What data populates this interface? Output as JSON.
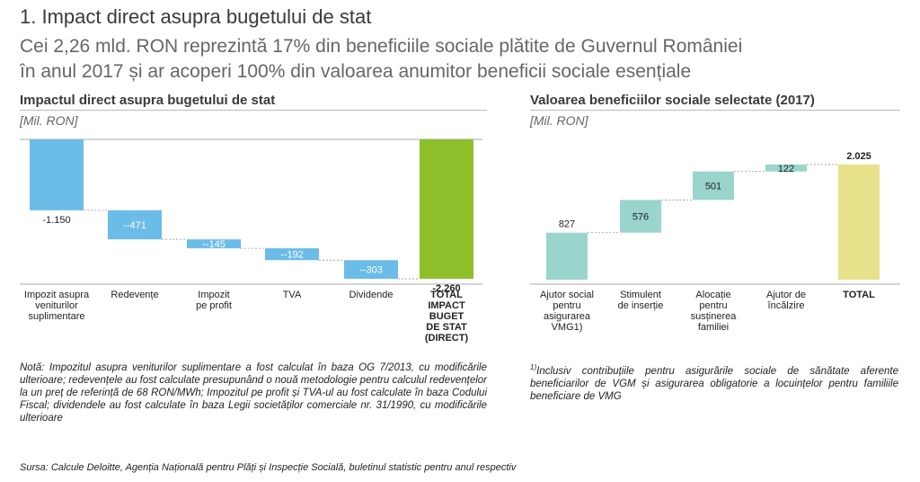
{
  "header": {
    "title": "1. Impact direct asupra bugetului de stat",
    "subtitle_line1": "Cei 2,26 mld. RON reprezintă 17% din beneficiile sociale plătite de Guvernul României",
    "subtitle_line2": "în anul 2017 și ar acoperi 100% din valoarea anumitor beneficii sociale esențiale"
  },
  "left_chart": {
    "title": "Impactul direct asupra bugetului de stat",
    "unit": "[Mil. RON]"
  },
  "right_chart": {
    "title": "Valoarea beneficiilor sociale selectate (2017)",
    "unit": "[Mil. RON]"
  },
  "colors": {
    "blue": "#6cbce8",
    "green": "#8dbf2b",
    "teal": "#99d4cd",
    "yellow": "#e6e18a"
  },
  "chart_data": [
    {
      "type": "bar",
      "subtype": "waterfall",
      "title": "Impactul direct asupra bugetului de stat",
      "ylabel": "[Mil. RON]",
      "ylim": [
        -2260,
        0
      ],
      "categories": [
        [
          "Impozit asupra",
          "veniturilor",
          "suplimentare"
        ],
        [
          "Redevențe"
        ],
        [
          "Impozit",
          "pe profit"
        ],
        [
          "TVA"
        ],
        [
          "Dividende"
        ],
        [
          "TOTAL",
          "IMPACT",
          "BUGET",
          "DE STAT",
          "(DIRECT)"
        ]
      ],
      "values": [
        -1150,
        -471,
        -145,
        -192,
        -303,
        -2260
      ],
      "labels": [
        "-1.150",
        "--471",
        "--145",
        "--192",
        "--303",
        "-2.260"
      ],
      "is_total": [
        false,
        false,
        false,
        false,
        false,
        true
      ]
    },
    {
      "type": "bar",
      "subtype": "waterfall",
      "title": "Valoarea beneficiilor sociale selectate (2017)",
      "ylabel": "[Mil. RON]",
      "ylim": [
        0,
        2025
      ],
      "categories": [
        [
          "Ajutor social",
          "pentru",
          "asigurarea",
          "VMG1)"
        ],
        [
          "Stimulent",
          "de inserție"
        ],
        [
          "Alocație",
          "pentru",
          "susținerea",
          "familiei"
        ],
        [
          "Ajutor de",
          "încălzire"
        ],
        [
          "TOTAL"
        ]
      ],
      "values": [
        827,
        576,
        501,
        122,
        2025
      ],
      "labels": [
        "827",
        "576",
        "501",
        "122",
        "2.025"
      ],
      "is_total": [
        false,
        false,
        false,
        false,
        true
      ]
    }
  ],
  "notes": {
    "left": "Notă: Impozitul asupra veniturilor suplimentare a fost calculat în baza OG 7/2013, cu modificările ulterioare; redevențele au fost calculate presupunând o nouă metodologie pentru calculul redevențelor la un preț de referință de 68 RON/MWh; Impozitul pe profit și TVA-ul au fost calculate în baza Codului Fiscal; dividendele au fost calculate în baza Legii societăților comerciale nr. 31/1990, cu modificările ulterioare",
    "right_superscript": "1)",
    "right": "Inclusiv contribuțiile pentru asigurările sociale de sănătate aferente beneficiarilor de VGM și asigurarea obligatorie a locuințelor pentru familiile beneficiare de VMG",
    "source": "Sursa: Calcule Deloitte, Agenția Națională pentru Plăți și Inspecție Socială, buletinul statistic pentru anul respectiv"
  }
}
